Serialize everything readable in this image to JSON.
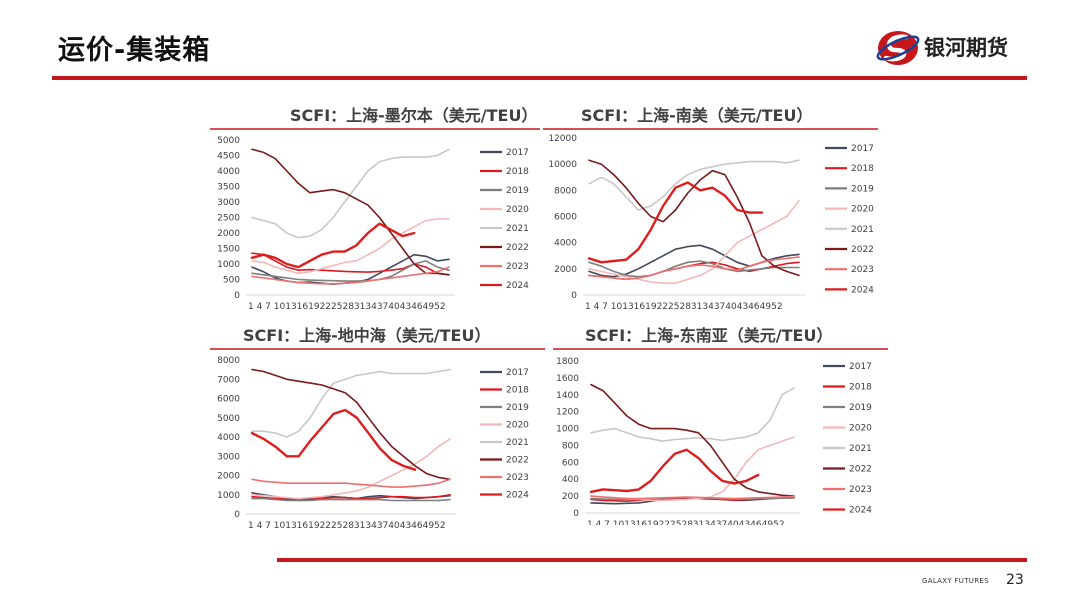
{
  "header": {
    "title": "运价-集装箱",
    "logo_text": "银河期货"
  },
  "footer": {
    "brand": "GALAXY FUTURES",
    "page_number": "23"
  },
  "series_colors": {
    "2017": "#3f4a5c",
    "2018": "#e0181e",
    "2019": "#7f7f7f",
    "2020": "#f4b8b8",
    "2021": "#c8c8c8",
    "2022": "#7a1a1a",
    "2023": "#ef6f6f",
    "2024": "#dd1e1e"
  },
  "chart_data": [
    {
      "type": "line",
      "title": "SCFI：上海-墨尔本（美元/TEU）",
      "x_label_text": "1 4 7 101316192225283134374043464952",
      "x": [
        1,
        4,
        7,
        10,
        13,
        16,
        19,
        22,
        25,
        28,
        31,
        34,
        37,
        40,
        43,
        46,
        49,
        52
      ],
      "ylim": [
        0,
        5000
      ],
      "yticks": [
        "0",
        "500",
        "1000",
        "1500",
        "2000",
        "2500",
        "3000",
        "3500",
        "4000",
        "4500",
        "5000"
      ],
      "legend": [
        "2017",
        "2018",
        "2019",
        "2020",
        "2021",
        "2022",
        "2023",
        "2024"
      ],
      "series": [
        {
          "name": "2017",
          "values": [
            900,
            750,
            550,
            450,
            400,
            420,
            380,
            350,
            380,
            420,
            500,
            700,
            900,
            1100,
            1300,
            1250,
            1100,
            1150
          ]
        },
        {
          "name": "2018",
          "values": [
            1350,
            1300,
            1100,
            900,
            800,
            820,
            800,
            780,
            760,
            750,
            740,
            760,
            800,
            850,
            1000,
            900,
            700,
            650
          ]
        },
        {
          "name": "2019",
          "values": [
            700,
            650,
            600,
            550,
            500,
            480,
            470,
            460,
            450,
            450,
            460,
            500,
            600,
            800,
            1000,
            1100,
            900,
            800
          ]
        },
        {
          "name": "2020",
          "values": [
            1100,
            1050,
            900,
            800,
            700,
            750,
            850,
            950,
            1050,
            1100,
            1300,
            1500,
            1800,
            2000,
            2200,
            2400,
            2450,
            2450
          ]
        },
        {
          "name": "2021",
          "values": [
            2500,
            2400,
            2300,
            2000,
            1850,
            1900,
            2100,
            2500,
            3000,
            3500,
            4000,
            4300,
            4400,
            4450,
            4450,
            4450,
            4500,
            4700
          ]
        },
        {
          "name": "2022",
          "values": [
            4700,
            4600,
            4400,
            4000,
            3600,
            3300,
            3350,
            3400,
            3300,
            3100,
            2900,
            2500,
            2000,
            1500,
            1000,
            700,
            700,
            650
          ]
        },
        {
          "name": "2023",
          "values": [
            600,
            550,
            500,
            450,
            400,
            380,
            360,
            360,
            380,
            400,
            450,
            500,
            550,
            600,
            650,
            700,
            750,
            900
          ]
        },
        {
          "name": "2024",
          "values": [
            1200,
            1300,
            1200,
            1000,
            900,
            1100,
            1300,
            1400,
            1400,
            1600,
            2000,
            2300,
            2100,
            1900,
            2000,
            null,
            null,
            null
          ]
        }
      ]
    },
    {
      "type": "line",
      "title": "SCFI：上海-南美（美元/TEU）",
      "x_label_text": "1 4 7 101316192225283134374043464952",
      "x": [
        1,
        4,
        7,
        10,
        13,
        16,
        19,
        22,
        25,
        28,
        31,
        34,
        37,
        40,
        43,
        46,
        49,
        52
      ],
      "ylim": [
        0,
        12000
      ],
      "yticks": [
        "0",
        "2000",
        "4000",
        "6000",
        "8000",
        "10000",
        "12000"
      ],
      "legend": [
        "2017",
        "2018",
        "2019",
        "2020",
        "2021",
        "2022",
        "2023",
        "2024"
      ],
      "series": [
        {
          "name": "2017",
          "values": [
            1800,
            1500,
            1400,
            1600,
            2000,
            2500,
            3000,
            3500,
            3700,
            3800,
            3500,
            3000,
            2500,
            2200,
            2500,
            2800,
            3000,
            3100
          ]
        },
        {
          "name": "2018",
          "values": [
            1500,
            1400,
            1300,
            1200,
            1300,
            1500,
            1800,
            2000,
            2200,
            2400,
            2500,
            2300,
            2000,
            1800,
            2000,
            2200,
            2400,
            2500
          ]
        },
        {
          "name": "2019",
          "values": [
            2500,
            2200,
            1800,
            1500,
            1400,
            1500,
            1800,
            2200,
            2500,
            2600,
            2400,
            2000,
            1800,
            1900,
            2000,
            2100,
            2100,
            2100
          ]
        },
        {
          "name": "2020",
          "values": [
            2000,
            1800,
            1600,
            1400,
            1200,
            1000,
            900,
            900,
            1200,
            1500,
            2000,
            3000,
            4000,
            4500,
            5000,
            5500,
            6000,
            7200
          ]
        },
        {
          "name": "2021",
          "values": [
            8500,
            9000,
            8500,
            7500,
            6500,
            6800,
            7500,
            8500,
            9200,
            9600,
            9800,
            10000,
            10100,
            10200,
            10200,
            10200,
            10100,
            10300
          ]
        },
        {
          "name": "2022",
          "values": [
            10300,
            10000,
            9200,
            8200,
            7000,
            6000,
            5600,
            6500,
            7800,
            8800,
            9500,
            9200,
            7500,
            5500,
            3000,
            2200,
            1800,
            1500
          ]
        },
        {
          "name": "2023",
          "values": [
            1500,
            1400,
            1300,
            1200,
            1300,
            1500,
            1800,
            2000,
            2200,
            2300,
            2200,
            2000,
            1900,
            2200,
            2500,
            2700,
            2800,
            2900
          ]
        },
        {
          "name": "2024",
          "values": [
            2800,
            2500,
            2600,
            2700,
            3500,
            5000,
            6800,
            8200,
            8600,
            8000,
            8200,
            7600,
            6500,
            6300,
            6300,
            null,
            null,
            null
          ]
        }
      ]
    },
    {
      "type": "line",
      "title": "SCFI：上海-地中海（美元/TEU）",
      "x_label_text": "1 4 7 101316192225283134374043464952",
      "x": [
        1,
        4,
        7,
        10,
        13,
        16,
        19,
        22,
        25,
        28,
        31,
        34,
        37,
        40,
        43,
        46,
        49,
        52
      ],
      "ylim": [
        0,
        8000
      ],
      "yticks": [
        "0",
        "1000",
        "2000",
        "3000",
        "4000",
        "5000",
        "6000",
        "7000",
        "8000"
      ],
      "legend": [
        "2017",
        "2018",
        "2019",
        "2020",
        "2021",
        "2022",
        "2023",
        "2024"
      ],
      "series": [
        {
          "name": "2017",
          "values": [
            1100,
            1000,
            900,
            800,
            750,
            800,
            850,
            900,
            850,
            800,
            900,
            950,
            900,
            850,
            800,
            850,
            900,
            950
          ]
        },
        {
          "name": "2018",
          "values": [
            900,
            850,
            800,
            750,
            700,
            750,
            800,
            850,
            850,
            800,
            800,
            850,
            900,
            900,
            850,
            850,
            900,
            1000
          ]
        },
        {
          "name": "2019",
          "values": [
            800,
            800,
            750,
            700,
            700,
            700,
            750,
            750,
            750,
            750,
            750,
            750,
            700,
            700,
            700,
            700,
            700,
            750
          ]
        },
        {
          "name": "2020",
          "values": [
            1000,
            950,
            900,
            850,
            800,
            850,
            900,
            1000,
            1100,
            1200,
            1400,
            1700,
            2000,
            2300,
            2600,
            3000,
            3500,
            3900
          ]
        },
        {
          "name": "2021",
          "values": [
            4300,
            4300,
            4200,
            4000,
            4300,
            5000,
            6000,
            6800,
            7000,
            7200,
            7300,
            7400,
            7300,
            7300,
            7300,
            7300,
            7400,
            7500
          ]
        },
        {
          "name": "2022",
          "values": [
            7500,
            7400,
            7200,
            7000,
            6900,
            6800,
            6700,
            6500,
            6300,
            5800,
            5000,
            4200,
            3500,
            3000,
            2500,
            2100,
            1900,
            1800
          ]
        },
        {
          "name": "2023",
          "values": [
            1800,
            1700,
            1650,
            1600,
            1600,
            1600,
            1600,
            1600,
            1600,
            1550,
            1500,
            1450,
            1400,
            1400,
            1450,
            1500,
            1600,
            1800
          ]
        },
        {
          "name": "2024",
          "values": [
            4200,
            3900,
            3500,
            3000,
            3000,
            3800,
            4500,
            5200,
            5400,
            5000,
            4200,
            3400,
            2800,
            2500,
            2300,
            null,
            null,
            3500
          ]
        }
      ]
    },
    {
      "type": "line",
      "title": "SCFI：上海-东南亚（美元/TEU）",
      "x_label_text": "1 4 7 101316192225283134374043464952",
      "x": [
        1,
        4,
        7,
        10,
        13,
        16,
        19,
        22,
        25,
        28,
        31,
        34,
        37,
        40,
        43,
        46,
        49,
        52
      ],
      "ylim": [
        0,
        1800
      ],
      "yticks": [
        "0",
        "200",
        "400",
        "600",
        "800",
        "1000",
        "1200",
        "1400",
        "1600",
        "1800"
      ],
      "legend": [
        "2017",
        "2018",
        "2019",
        "2020",
        "2021",
        "2022",
        "2023",
        "2024"
      ],
      "series": [
        {
          "name": "2017",
          "values": [
            120,
            115,
            110,
            115,
            120,
            140,
            160,
            170,
            180,
            175,
            170,
            160,
            150,
            150,
            160,
            170,
            175,
            180
          ]
        },
        {
          "name": "2018",
          "values": [
            160,
            150,
            145,
            140,
            150,
            160,
            170,
            175,
            175,
            170,
            165,
            160,
            155,
            160,
            170,
            180,
            185,
            190
          ]
        },
        {
          "name": "2019",
          "values": [
            170,
            165,
            160,
            160,
            165,
            170,
            175,
            180,
            185,
            180,
            175,
            170,
            165,
            165,
            170,
            175,
            175,
            180
          ]
        },
        {
          "name": "2020",
          "values": [
            200,
            190,
            180,
            170,
            160,
            150,
            150,
            155,
            160,
            170,
            190,
            250,
            400,
            600,
            750,
            800,
            850,
            900
          ]
        },
        {
          "name": "2021",
          "values": [
            950,
            980,
            1000,
            950,
            900,
            880,
            850,
            870,
            880,
            890,
            880,
            860,
            880,
            900,
            950,
            1100,
            1400,
            1480
          ]
        },
        {
          "name": "2022",
          "values": [
            1520,
            1450,
            1300,
            1150,
            1050,
            1000,
            1000,
            1000,
            980,
            950,
            800,
            600,
            400,
            300,
            250,
            230,
            210,
            200
          ]
        },
        {
          "name": "2023",
          "values": [
            200,
            190,
            180,
            170,
            170,
            175,
            180,
            185,
            190,
            185,
            180,
            175,
            170,
            175,
            180,
            185,
            190,
            195
          ]
        },
        {
          "name": "2024",
          "values": [
            250,
            280,
            270,
            260,
            280,
            380,
            550,
            700,
            750,
            650,
            500,
            380,
            350,
            380,
            450,
            null,
            null,
            null
          ]
        }
      ]
    }
  ]
}
